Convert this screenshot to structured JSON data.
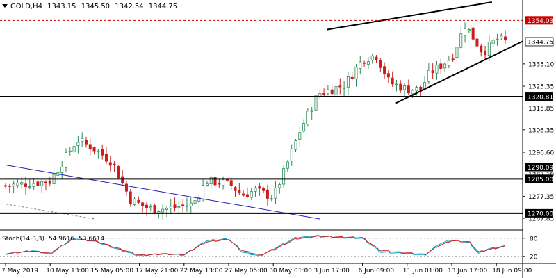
{
  "header": {
    "symbol": "GOLD,H4",
    "open": "1343.15",
    "high": "1345.50",
    "low": "1342.54",
    "close": "1344.75"
  },
  "stoch": {
    "label": "Stoch(14,3,3)",
    "main": "54.9616",
    "signal": "53.6614",
    "levels": [
      "80",
      "20"
    ]
  },
  "price_axis": {
    "ticks": [
      "1335.10",
      "1325.35",
      "1315.85",
      "1306.35",
      "1296.60",
      "1287.10",
      "1277.35",
      "1267.85"
    ]
  },
  "time_axis": {
    "ticks": [
      "7 May 2019",
      "10 May 13:00",
      "15 May 05:00",
      "17 May 21:00",
      "22 May 13:00",
      "27 May 05:00",
      "30 May 01:00",
      "3 Jun 17:00",
      "6 Jun 09:00",
      "11 Jun 01:00",
      "13 Jun 17:00",
      "18 Jun 09:00"
    ]
  },
  "levels": [
    {
      "label": "1354.03",
      "value": 1354.03,
      "style": "dashed",
      "color": "#cc0000",
      "bg": "#cc0000",
      "fg": "#ffffff"
    },
    {
      "label": "1344.75",
      "value": 1344.75,
      "style": "current",
      "color": "#000000",
      "bg": "#ffffff",
      "fg": "#000000"
    },
    {
      "label": "1320.81",
      "value": 1320.81,
      "style": "solid",
      "color": "#000000",
      "bg": "#000000",
      "fg": "#ffffff"
    },
    {
      "label": "1290.09",
      "value": 1290.09,
      "style": "dashed",
      "color": "#000000",
      "bg": "#000000",
      "fg": "#ffffff"
    },
    {
      "label": "1285.00",
      "value": 1285.0,
      "style": "solid",
      "color": "#000000",
      "bg": "#000000",
      "fg": "#ffffff"
    },
    {
      "label": "1270.00",
      "value": 1270.0,
      "style": "solid",
      "color": "#000000",
      "bg": "#000000",
      "fg": "#ffffff"
    }
  ],
  "colors": {
    "bull": "#2e8b57",
    "bear": "#c81e1e",
    "trendline": "#1e1eb4",
    "stoch_main": "#00a0c8",
    "stoch_signal": "#c81e1e",
    "grid": "#000000"
  },
  "chart_data": {
    "type": "candlestick",
    "symbol": "GOLD,H4",
    "ylim": [
      1263,
      1362
    ],
    "x": [
      "7 May 2019",
      "10 May 13:00",
      "15 May 05:00",
      "17 May 21:00",
      "22 May 13:00",
      "27 May 05:00",
      "30 May 01:00",
      "3 Jun 17:00",
      "6 Jun 09:00",
      "11 Jun 01:00",
      "13 Jun 17:00",
      "18 Jun 09:00"
    ],
    "close_path": [
      [
        0,
        1282
      ],
      [
        0.5,
        1283
      ],
      [
        1,
        1284
      ],
      [
        1.6,
        1302
      ],
      [
        2,
        1298
      ],
      [
        2.4,
        1292
      ],
      [
        2.8,
        1276
      ],
      [
        3.2,
        1272
      ],
      [
        3.6,
        1272
      ],
      [
        4.2,
        1274
      ],
      [
        4.5,
        1284
      ],
      [
        5,
        1283
      ],
      [
        5.3,
        1278
      ],
      [
        5.6,
        1280
      ],
      [
        6,
        1277
      ],
      [
        6.2,
        1286
      ],
      [
        6.6,
        1306
      ],
      [
        7,
        1322
      ],
      [
        7.3,
        1324
      ],
      [
        7.6,
        1326
      ],
      [
        8,
        1337
      ],
      [
        8.3,
        1339
      ],
      [
        8.6,
        1327
      ],
      [
        9,
        1324
      ],
      [
        9.3,
        1324
      ],
      [
        9.5,
        1331
      ],
      [
        9.8,
        1335
      ],
      [
        10,
        1338
      ],
      [
        10.3,
        1352
      ],
      [
        10.7,
        1340
      ],
      [
        11,
        1346
      ],
      [
        11.2,
        1344.75
      ]
    ],
    "stochastic": {
      "k": [
        [
          0,
          28
        ],
        [
          0.6,
          40
        ],
        [
          1,
          28
        ],
        [
          1.5,
          80
        ],
        [
          2,
          70
        ],
        [
          2.5,
          45
        ],
        [
          3,
          22
        ],
        [
          3.5,
          30
        ],
        [
          4,
          25
        ],
        [
          4.5,
          72
        ],
        [
          5,
          78
        ],
        [
          5.3,
          35
        ],
        [
          5.7,
          22
        ],
        [
          6,
          45
        ],
        [
          6.5,
          82
        ],
        [
          7,
          88
        ],
        [
          7.5,
          82
        ],
        [
          8,
          80
        ],
        [
          8.4,
          35
        ],
        [
          9,
          30
        ],
        [
          9.4,
          25
        ],
        [
          9.7,
          60
        ],
        [
          10,
          75
        ],
        [
          10.4,
          65
        ],
        [
          10.6,
          30
        ],
        [
          10.8,
          45
        ],
        [
          11.2,
          55
        ]
      ],
      "d": [
        [
          0,
          30
        ],
        [
          0.6,
          38
        ],
        [
          1,
          32
        ],
        [
          1.5,
          76
        ],
        [
          2,
          72
        ],
        [
          2.5,
          48
        ],
        [
          3,
          25
        ],
        [
          3.5,
          28
        ],
        [
          4,
          27
        ],
        [
          4.5,
          68
        ],
        [
          5,
          76
        ],
        [
          5.3,
          40
        ],
        [
          5.7,
          25
        ],
        [
          6,
          42
        ],
        [
          6.5,
          78
        ],
        [
          7,
          86
        ],
        [
          7.5,
          84
        ],
        [
          8,
          82
        ],
        [
          8.4,
          40
        ],
        [
          9,
          32
        ],
        [
          9.4,
          27
        ],
        [
          9.7,
          55
        ],
        [
          10,
          72
        ],
        [
          10.4,
          68
        ],
        [
          10.6,
          35
        ],
        [
          10.8,
          42
        ],
        [
          11.2,
          53.66
        ]
      ]
    }
  }
}
